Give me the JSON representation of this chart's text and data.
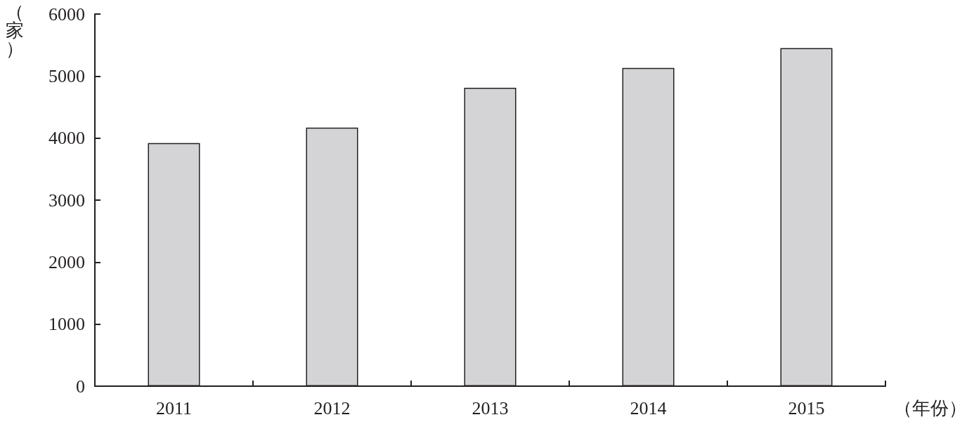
{
  "chart_data": {
    "type": "bar",
    "categories": [
      "2011",
      "2012",
      "2013",
      "2014",
      "2015"
    ],
    "values": [
      3920,
      4170,
      4810,
      5130,
      5450
    ],
    "color": "#d4d4d6",
    "ylabel": "（家）",
    "xlabel": "（年份）",
    "ylim": [
      0,
      6000
    ],
    "yticks": [
      0,
      1000,
      2000,
      3000,
      4000,
      5000,
      6000
    ],
    "grid": false
  }
}
